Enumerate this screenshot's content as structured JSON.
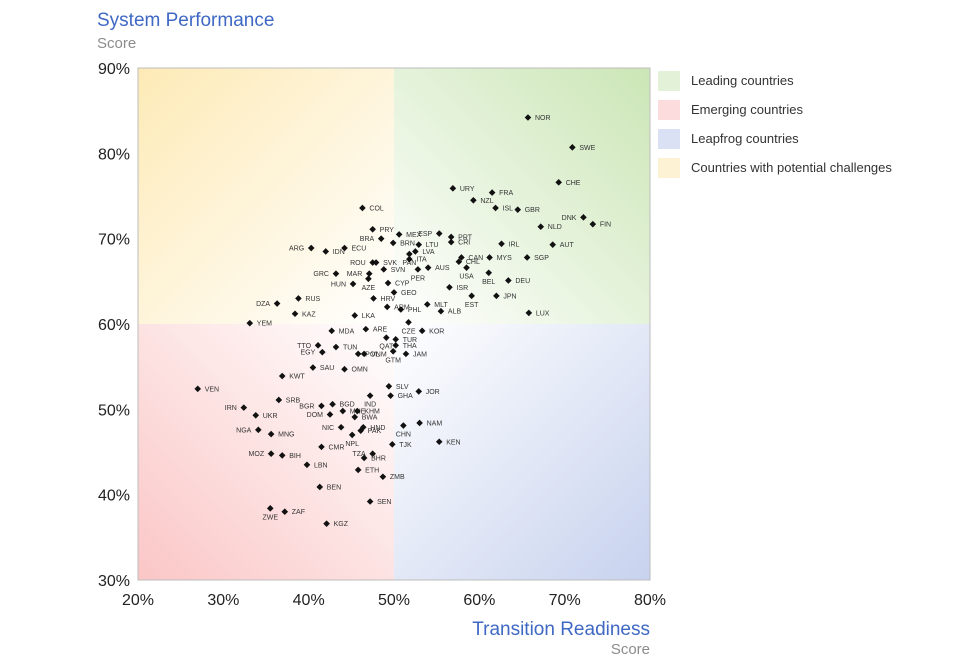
{
  "chart_data": {
    "type": "scatter",
    "title": "System Performance",
    "subtitle": "Score",
    "xlabel": "Transition Readiness",
    "xlabel_sub": "Score",
    "xlim": [
      20,
      80
    ],
    "ylim": [
      30,
      90
    ],
    "x_ticks": [
      "20%",
      "30%",
      "40%",
      "50%",
      "60%",
      "70%",
      "80%"
    ],
    "y_ticks": [
      "90%",
      "80%",
      "70%",
      "60%",
      "50%",
      "40%",
      "30%"
    ],
    "grid": false,
    "legend_position": "right",
    "quadrant_divider": {
      "x": 50,
      "y": 60
    },
    "quadrants": [
      {
        "name": "Leading countries",
        "color": "#cbe6b6"
      },
      {
        "name": "Emerging countries",
        "color": "#fbc6c6"
      },
      {
        "name": "Leapfrog countries",
        "color": "#c7d2ee"
      },
      {
        "name": "Countries with potential challenges",
        "color": "#fdeab6"
      }
    ],
    "points": [
      {
        "label": "NOR",
        "x": 65.7,
        "y": 84.2
      },
      {
        "label": "SWE",
        "x": 70.9,
        "y": 80.7
      },
      {
        "label": "CHE",
        "x": 69.3,
        "y": 76.6
      },
      {
        "label": "FRA",
        "x": 61.5,
        "y": 75.4
      },
      {
        "label": "URY",
        "x": 56.9,
        "y": 75.9
      },
      {
        "label": "NZL",
        "x": 59.3,
        "y": 74.5
      },
      {
        "label": "ISL",
        "x": 61.9,
        "y": 73.6
      },
      {
        "label": "GBR",
        "x": 64.5,
        "y": 73.4
      },
      {
        "label": "DNK",
        "x": 72.2,
        "y": 72.5
      },
      {
        "label": "FIN",
        "x": 73.3,
        "y": 71.7
      },
      {
        "label": "NLD",
        "x": 67.2,
        "y": 71.4
      },
      {
        "label": "ESP",
        "x": 55.3,
        "y": 70.6
      },
      {
        "label": "PRT",
        "x": 56.7,
        "y": 70.2
      },
      {
        "label": "CRI",
        "x": 56.7,
        "y": 69.6
      },
      {
        "label": "IRL",
        "x": 62.6,
        "y": 69.4
      },
      {
        "label": "AUT",
        "x": 68.6,
        "y": 69.3
      },
      {
        "label": "MYS",
        "x": 61.2,
        "y": 67.8
      },
      {
        "label": "SGP",
        "x": 65.6,
        "y": 67.8
      },
      {
        "label": "CAN",
        "x": 57.9,
        "y": 67.8
      },
      {
        "label": "CHL",
        "x": 57.6,
        "y": 67.3
      },
      {
        "label": "USA",
        "x": 58.5,
        "y": 66.6
      },
      {
        "label": "BEL",
        "x": 61.1,
        "y": 66.0
      },
      {
        "label": "DEU",
        "x": 63.4,
        "y": 65.1
      },
      {
        "label": "ISR",
        "x": 56.5,
        "y": 64.3
      },
      {
        "label": "JPN",
        "x": 62.0,
        "y": 63.3
      },
      {
        "label": "EST",
        "x": 59.1,
        "y": 63.3
      },
      {
        "label": "LUX",
        "x": 65.8,
        "y": 61.3
      },
      {
        "label": "COL",
        "x": 46.3,
        "y": 73.6
      },
      {
        "label": "PRY",
        "x": 47.5,
        "y": 71.1
      },
      {
        "label": "MEX",
        "x": 50.6,
        "y": 70.5
      },
      {
        "label": "BRA",
        "x": 48.5,
        "y": 70.0
      },
      {
        "label": "BRN",
        "x": 49.9,
        "y": 69.5
      },
      {
        "label": "LTU",
        "x": 52.9,
        "y": 69.3
      },
      {
        "label": "LVA",
        "x": 52.5,
        "y": 68.5
      },
      {
        "label": "ARG",
        "x": 40.3,
        "y": 68.9
      },
      {
        "label": "ECU",
        "x": 44.2,
        "y": 68.9
      },
      {
        "label": "IDN",
        "x": 42.0,
        "y": 68.5
      },
      {
        "label": "PAN",
        "x": 51.8,
        "y": 68.2
      },
      {
        "label": "ITA",
        "x": 51.8,
        "y": 67.6
      },
      {
        "label": "ROU",
        "x": 47.5,
        "y": 67.2
      },
      {
        "label": "SVK",
        "x": 47.9,
        "y": 67.2
      },
      {
        "label": "AUS",
        "x": 54.0,
        "y": 66.6
      },
      {
        "label": "SVN",
        "x": 48.8,
        "y": 66.4
      },
      {
        "label": "PER",
        "x": 52.8,
        "y": 66.4
      },
      {
        "label": "GRC",
        "x": 43.2,
        "y": 65.9
      },
      {
        "label": "MAR",
        "x": 47.1,
        "y": 65.9
      },
      {
        "label": "AZE",
        "x": 47.0,
        "y": 65.3
      },
      {
        "label": "CYP",
        "x": 49.3,
        "y": 64.8
      },
      {
        "label": "HUN",
        "x": 45.2,
        "y": 64.7
      },
      {
        "label": "GEO",
        "x": 50.0,
        "y": 63.7
      },
      {
        "label": "HRV",
        "x": 47.6,
        "y": 63.0
      },
      {
        "label": "RUS",
        "x": 38.8,
        "y": 63.0
      },
      {
        "label": "DZA",
        "x": 36.3,
        "y": 62.4
      },
      {
        "label": "KAZ",
        "x": 38.4,
        "y": 61.2
      },
      {
        "label": "ARM",
        "x": 49.2,
        "y": 62.0
      },
      {
        "label": "PHL",
        "x": 50.8,
        "y": 61.7
      },
      {
        "label": "MLT",
        "x": 53.9,
        "y": 62.3
      },
      {
        "label": "ALB",
        "x": 55.5,
        "y": 61.5
      },
      {
        "label": "LKA",
        "x": 45.4,
        "y": 61.0
      },
      {
        "label": "YEM",
        "x": 33.1,
        "y": 60.1
      },
      {
        "label": "CZE",
        "x": 51.7,
        "y": 60.2
      },
      {
        "label": "KOR",
        "x": 53.3,
        "y": 59.2
      },
      {
        "label": "MDA",
        "x": 42.7,
        "y": 59.2
      },
      {
        "label": "ARE",
        "x": 46.7,
        "y": 59.4
      },
      {
        "label": "QAT",
        "x": 49.1,
        "y": 58.4
      },
      {
        "label": "TUR",
        "x": 50.2,
        "y": 58.2
      },
      {
        "label": "TTO",
        "x": 41.1,
        "y": 57.5
      },
      {
        "label": "EGY",
        "x": 41.6,
        "y": 56.7
      },
      {
        "label": "TUN",
        "x": 43.2,
        "y": 57.3
      },
      {
        "label": "THA",
        "x": 50.2,
        "y": 57.5
      },
      {
        "label": "POL",
        "x": 45.8,
        "y": 56.5
      },
      {
        "label": "VNM",
        "x": 46.5,
        "y": 56.5
      },
      {
        "label": "GTM",
        "x": 49.9,
        "y": 56.8
      },
      {
        "label": "JAM",
        "x": 51.4,
        "y": 56.5
      },
      {
        "label": "SAU",
        "x": 40.5,
        "y": 54.9
      },
      {
        "label": "OMN",
        "x": 44.2,
        "y": 54.7
      },
      {
        "label": "KWT",
        "x": 36.9,
        "y": 53.9
      },
      {
        "label": "VEN",
        "x": 27.0,
        "y": 52.4
      },
      {
        "label": "SLV",
        "x": 49.4,
        "y": 52.7
      },
      {
        "label": "JOR",
        "x": 52.9,
        "y": 52.1
      },
      {
        "label": "GHA",
        "x": 49.6,
        "y": 51.6
      },
      {
        "label": "IND",
        "x": 47.2,
        "y": 51.6
      },
      {
        "label": "BGD",
        "x": 42.8,
        "y": 50.6
      },
      {
        "label": "SRB",
        "x": 36.5,
        "y": 51.1
      },
      {
        "label": "BGR",
        "x": 41.5,
        "y": 50.4
      },
      {
        "label": "IRN",
        "x": 32.4,
        "y": 50.2
      },
      {
        "label": "MNE",
        "x": 44.0,
        "y": 49.8
      },
      {
        "label": "KHM",
        "x": 45.7,
        "y": 49.8
      },
      {
        "label": "UKR",
        "x": 33.8,
        "y": 49.3
      },
      {
        "label": "DOM",
        "x": 42.5,
        "y": 49.4
      },
      {
        "label": "BWA",
        "x": 45.4,
        "y": 49.1
      },
      {
        "label": "NAM",
        "x": 53.0,
        "y": 48.4
      },
      {
        "label": "HND",
        "x": 46.4,
        "y": 47.9
      },
      {
        "label": "NIC",
        "x": 43.8,
        "y": 47.9
      },
      {
        "label": "PAK",
        "x": 46.1,
        "y": 47.5
      },
      {
        "label": "NGA",
        "x": 34.1,
        "y": 47.6
      },
      {
        "label": "MNG",
        "x": 35.6,
        "y": 47.1
      },
      {
        "label": "CHN",
        "x": 51.1,
        "y": 48.1
      },
      {
        "label": "NPL",
        "x": 45.1,
        "y": 47.0
      },
      {
        "label": "KEN",
        "x": 55.3,
        "y": 46.2
      },
      {
        "label": "TJK",
        "x": 49.8,
        "y": 45.9
      },
      {
        "label": "CMR",
        "x": 41.5,
        "y": 45.6
      },
      {
        "label": "MOZ",
        "x": 35.6,
        "y": 44.8
      },
      {
        "label": "BIH",
        "x": 36.9,
        "y": 44.6
      },
      {
        "label": "TZA",
        "x": 47.5,
        "y": 44.8
      },
      {
        "label": "BHR",
        "x": 46.5,
        "y": 44.3
      },
      {
        "label": "LBN",
        "x": 39.8,
        "y": 43.5
      },
      {
        "label": "ETH",
        "x": 45.8,
        "y": 42.9
      },
      {
        "label": "ZMB",
        "x": 48.7,
        "y": 42.1
      },
      {
        "label": "BEN",
        "x": 41.3,
        "y": 40.9
      },
      {
        "label": "SEN",
        "x": 47.2,
        "y": 39.2
      },
      {
        "label": "ZWE",
        "x": 35.5,
        "y": 38.4
      },
      {
        "label": "ZAF",
        "x": 37.2,
        "y": 38.0
      },
      {
        "label": "KGZ",
        "x": 42.1,
        "y": 36.6
      }
    ]
  }
}
